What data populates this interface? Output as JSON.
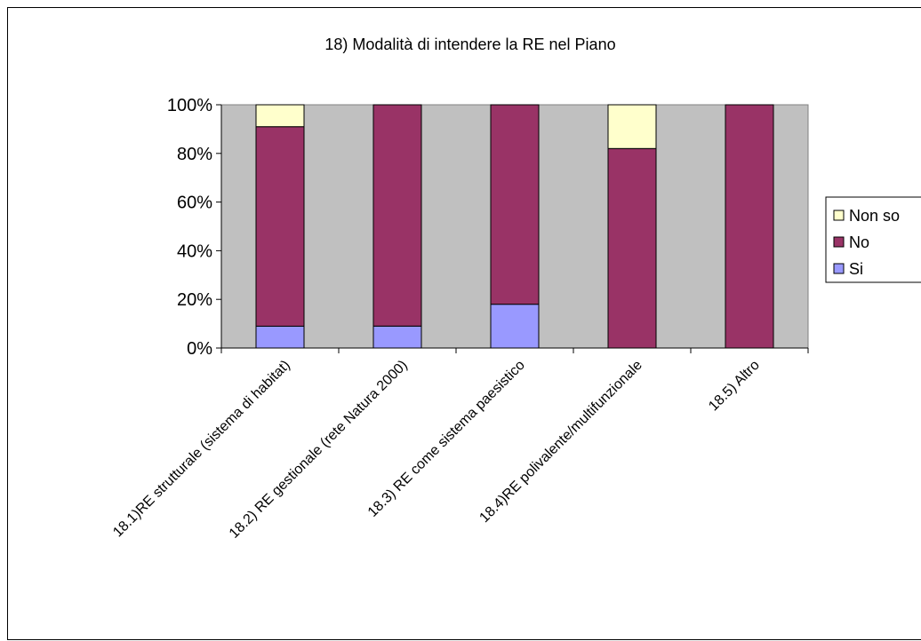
{
  "chart_data": {
    "type": "bar",
    "stacked": true,
    "percent_stacked": true,
    "title": "18) Modalità di intendere la RE nel Piano",
    "xlabel": "",
    "ylabel": "",
    "ylim": [
      0,
      100
    ],
    "yticks": [
      "0%",
      "20%",
      "40%",
      "60%",
      "80%",
      "100%"
    ],
    "grid": false,
    "legend_position": "right",
    "plot_background": "#C0C0C0",
    "categories": [
      "18.1)RE strutturale (sistema di habitat)",
      "18.2) RE gestionale (rete Natura 2000)",
      "18.3) RE come sistema paesistico",
      "18.4)RE polivalente/multifunzionale",
      "18.5) Altro"
    ],
    "series": [
      {
        "name": "Si",
        "color": "#9999FF",
        "values": [
          9,
          9,
          18,
          0,
          0
        ]
      },
      {
        "name": "No",
        "color": "#993366",
        "values": [
          82,
          91,
          82,
          82,
          100
        ]
      },
      {
        "name": "Non so",
        "color": "#FFFFCC",
        "values": [
          9,
          0,
          0,
          18,
          0
        ]
      }
    ],
    "legend_order": [
      "Non so",
      "No",
      "Si"
    ]
  }
}
